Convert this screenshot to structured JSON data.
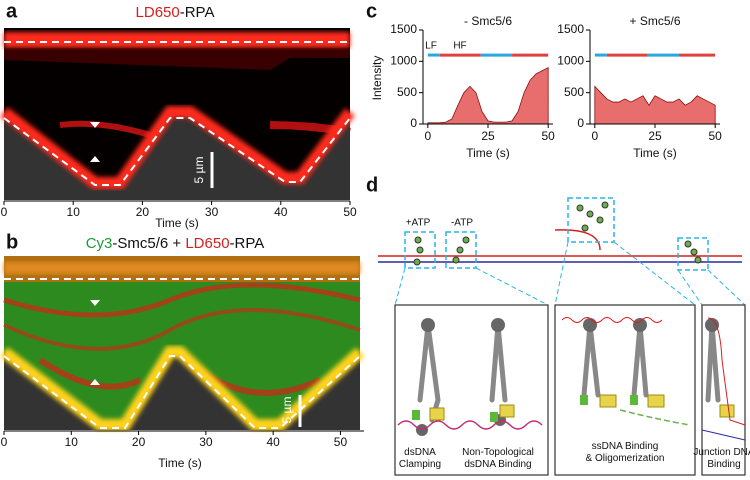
{
  "panels": {
    "a": {
      "label": "a",
      "title_parts": [
        "LD650",
        "-RPA"
      ],
      "xlabel": "Time (s)",
      "xlim": [
        0,
        50
      ],
      "xticks": [
        0,
        10,
        20,
        30,
        40,
        50
      ],
      "scale_bar": "5 µm"
    },
    "b": {
      "label": "b",
      "title_parts": [
        "Cy3",
        "-Smc5/6 + ",
        "LD650",
        "-RPA"
      ],
      "xlabel": "Time (s)",
      "xlim": [
        0,
        53.5
      ],
      "xticks": [
        0,
        10,
        20,
        30,
        40,
        50
      ],
      "scale_bar": "5 µm"
    },
    "c": {
      "label": "c",
      "ylabel": "Intensity",
      "lf": "LF",
      "hf": "HF"
    },
    "d": {
      "label": "d",
      "plus_atp": "+ATP",
      "minus_atp": "-ATP",
      "box1": [
        "dsDNA\nClamping",
        "Non-Topological\ndsDNA Binding"
      ],
      "box2": "ssDNA Binding\n& Oligomerization",
      "box3": "Junction DNA\nBinding"
    }
  },
  "chart_data": [
    {
      "type": "area",
      "title": "- Smc5/6",
      "xlabel": "Time (s)",
      "x": [
        0,
        2.5,
        5,
        7.5,
        10,
        12.5,
        15,
        17.5,
        20,
        22.5,
        25,
        27.5,
        30,
        32.5,
        35,
        37.5,
        40,
        42.5,
        45,
        47.5,
        50
      ],
      "series": [
        {
          "color": "#e03c3c",
          "values": [
            20,
            20,
            20,
            30,
            80,
            300,
            500,
            600,
            500,
            200,
            50,
            30,
            30,
            30,
            50,
            200,
            500,
            700,
            800,
            850,
            900
          ]
        }
      ],
      "xlim": [
        -2,
        52
      ],
      "xticks": [
        0,
        25,
        50
      ],
      "ylim": [
        0,
        1500
      ],
      "yticks": [
        0,
        500,
        1000,
        1500
      ]
    },
    {
      "type": "area",
      "title": "+ Smc5/6",
      "xlabel": "Time (s)",
      "x": [
        0,
        2.5,
        5,
        7.5,
        10,
        12.5,
        15,
        17.5,
        20,
        22.5,
        25,
        27.5,
        30,
        32.5,
        35,
        37.5,
        40,
        42.5,
        45,
        47.5,
        50
      ],
      "series": [
        {
          "color": "#e03c3c",
          "values": [
            600,
            500,
            400,
            350,
            350,
            400,
            350,
            400,
            450,
            300,
            450,
            400,
            350,
            350,
            400,
            300,
            350,
            450,
            400,
            350,
            300
          ]
        }
      ],
      "xlim": [
        -2,
        52
      ],
      "xticks": [
        0,
        25,
        50
      ],
      "ylim": [
        0,
        1500
      ],
      "yticks": [
        0,
        500,
        1000,
        1500
      ]
    }
  ]
}
